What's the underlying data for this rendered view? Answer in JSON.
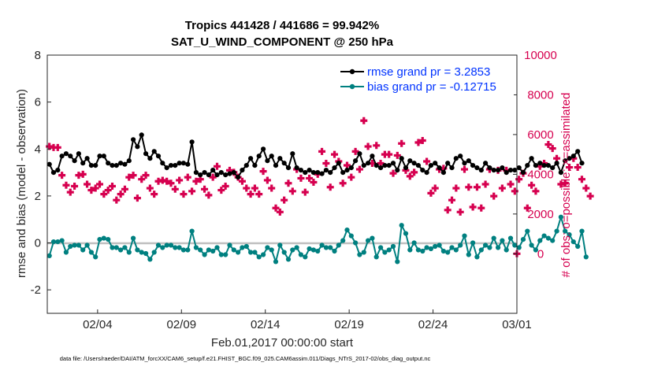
{
  "chart_data": {
    "type": "line",
    "title": "Tropics 441428 / 441686 = 99.942%",
    "subtitle": "SAT_U_WIND_COMPONENT @ 250 hPa",
    "xlabel": "Feb.01,2017 00:00:00 start",
    "ylabel_left": "rmse and bias (model - observation)",
    "ylabel_right": "# of obs: o=possible; ×=assimilated",
    "footer": "data file: /Users/raeder/DAI/ATM_forcXX/CAM6_setup/f.e21.FHIST_BGC.f09_025.CAM6assim.011/Diags_NTrS_2017-02/obs_diag_output.nc",
    "xlim": [
      1.0,
      29.0
    ],
    "ylim_left": [
      -3,
      8
    ],
    "ylim_right": [
      -3000,
      10000
    ],
    "x_tick_values": [
      4,
      9,
      14,
      19,
      24,
      29
    ],
    "x_tick_labels": [
      "02/04",
      "02/09",
      "02/14",
      "02/19",
      "02/24",
      "03/01"
    ],
    "y_left_ticks": [
      "-2",
      "0",
      "2",
      "4",
      "6",
      "8"
    ],
    "y_right_ticks": [
      "0",
      "2000",
      "4000",
      "6000",
      "8000",
      "10000"
    ],
    "y_right_tick_values": [
      0,
      2000,
      4000,
      6000,
      8000,
      10000
    ],
    "legend_position": "top-right",
    "colors": {
      "rmse": "#000000",
      "bias": "#008080",
      "obs": "#d6004f",
      "zero_line": "#bfbfbf",
      "legend_text": "#0033ff"
    },
    "x_step_days": 0.25,
    "series": [
      {
        "name": "rmse grand pr = 3.2853",
        "role": "rmse",
        "axis": "left",
        "values": [
          3.35,
          3.0,
          3.1,
          3.7,
          3.8,
          3.7,
          3.5,
          3.8,
          3.4,
          3.6,
          3.3,
          3.3,
          3.7,
          3.7,
          3.4,
          3.3,
          3.3,
          3.4,
          3.35,
          3.5,
          4.4,
          4.1,
          4.6,
          3.8,
          3.6,
          3.9,
          3.7,
          3.4,
          3.2,
          3.3,
          3.3,
          3.4,
          3.4,
          3.35,
          4.3,
          3.0,
          2.9,
          3.0,
          2.9,
          3.1,
          2.9,
          3.0,
          2.9,
          2.95,
          3.0,
          2.8,
          3.1,
          3.3,
          3.6,
          3.3,
          3.7,
          4.0,
          3.5,
          3.7,
          3.3,
          3.6,
          3.4,
          3.2,
          3.8,
          3.2,
          3.1,
          3.0,
          3.1,
          3.0,
          3.0,
          2.95,
          3.1,
          3.0,
          3.2,
          3.4,
          3.0,
          3.1,
          3.2,
          3.5,
          3.8,
          3.3,
          3.4,
          3.7,
          3.3,
          3.2,
          3.3,
          3.3,
          3.4,
          3.1,
          3.6,
          3.2,
          3.5,
          3.4,
          3.3,
          3.1,
          3.0,
          3.3,
          3.4,
          3.2,
          3.0,
          3.4,
          3.2,
          3.6,
          3.7,
          3.4,
          3.5,
          3.3,
          3.2,
          3.1,
          3.4,
          3.2,
          3.1,
          3.1,
          3.2,
          3.0,
          3.1,
          3.1,
          3.2,
          3.0,
          3.3,
          3.6,
          3.3,
          3.4,
          3.3,
          3.3,
          3.2,
          3.4,
          3.0,
          3.5,
          3.6,
          3.7,
          3.9,
          3.4
        ]
      },
      {
        "name": "bias grand pr = -0.12715",
        "role": "bias",
        "axis": "left",
        "values": [
          -0.55,
          0.05,
          0.05,
          0.1,
          -0.4,
          -0.15,
          -0.1,
          -0.1,
          -0.3,
          -0.1,
          -0.4,
          -0.6,
          0.15,
          0.2,
          0.15,
          -0.2,
          -0.2,
          -0.3,
          -0.2,
          -0.4,
          0.2,
          -0.3,
          -0.4,
          -0.45,
          -0.7,
          -0.4,
          -0.1,
          -0.2,
          -0.1,
          -0.1,
          -0.2,
          -0.2,
          -0.3,
          -0.3,
          0.5,
          -0.2,
          -0.3,
          -0.5,
          -0.3,
          -0.35,
          -0.2,
          -0.5,
          -0.5,
          -0.1,
          -0.3,
          -0.4,
          -0.2,
          -0.15,
          -0.4,
          -0.4,
          -0.6,
          -0.5,
          -0.2,
          -0.3,
          -0.8,
          -0.1,
          -0.4,
          -0.7,
          -0.3,
          -0.2,
          -0.5,
          -0.6,
          -0.25,
          -0.3,
          -0.35,
          -0.1,
          -0.2,
          -0.2,
          -0.35,
          -0.1,
          0.1,
          0.55,
          0.3,
          0.0,
          -0.5,
          -0.4,
          0.1,
          0.2,
          -0.6,
          -0.2,
          -0.4,
          -0.3,
          -0.15,
          -0.8,
          0.75,
          0.4,
          -0.3,
          0.0,
          -0.3,
          -0.35,
          -0.2,
          -0.25,
          -0.15,
          -0.1,
          -0.35,
          -0.4,
          -0.2,
          -0.3,
          -0.1,
          0.3,
          -0.5,
          0.0,
          -0.6,
          -0.3,
          -0.1,
          -0.2,
          0.2,
          -0.2,
          0.1,
          -0.3,
          0.2,
          -0.1,
          -0.2,
          0.15,
          0.5,
          -0.1,
          -0.3,
          0.1,
          0.3,
          0.2,
          0.1,
          0.5,
          1.1,
          0.5,
          0.35,
          0.05,
          -0.15,
          0.5,
          -0.6
        ]
      },
      {
        "name": "# of obs assimilated",
        "role": "obs",
        "axis": "right",
        "values": [
          5400,
          5350,
          5350,
          3950,
          3450,
          3100,
          3400,
          3950,
          4000,
          3500,
          3200,
          3300,
          3500,
          3000,
          3200,
          3400,
          2700,
          3000,
          3250,
          3850,
          3950,
          2800,
          3750,
          3950,
          3300,
          3000,
          3650,
          3700,
          3650,
          3550,
          3250,
          3700,
          3000,
          3850,
          3150,
          3650,
          3750,
          3250,
          2950,
          3850,
          4400,
          3200,
          3400,
          4200,
          4100,
          3850,
          3650,
          3300,
          3000,
          3300,
          3000,
          4150,
          3700,
          3300,
          2300,
          2100,
          2700,
          3550,
          3150,
          4250,
          3800,
          3100,
          3800,
          3600,
          4000,
          5150,
          4550,
          3350,
          5000,
          4650,
          3550,
          4450,
          3850,
          5150,
          4250,
          6700,
          5400,
          4550,
          5450,
          4550,
          5000,
          5000,
          4050,
          4950,
          5550,
          4200,
          3900,
          4100,
          5600,
          5700,
          4650,
          3050,
          3300,
          4250,
          4300,
          2200,
          2700,
          3300,
          2100,
          4250,
          3350,
          2350,
          3350,
          2300,
          3500,
          4250,
          2900,
          4200,
          3300,
          4200,
          3500,
          3150,
          3750,
          4050,
          2300,
          3450,
          3150,
          4400,
          4550,
          5500,
          5300,
          4800,
          3500,
          3550,
          4350,
          4800,
          4350,
          3750,
          3300,
          2900
        ]
      },
      {
        "name": "# of obs possible",
        "role": "obs-possible",
        "axis": "right",
        "x": [
          29.0
        ],
        "values": [
          0
        ]
      }
    ]
  }
}
